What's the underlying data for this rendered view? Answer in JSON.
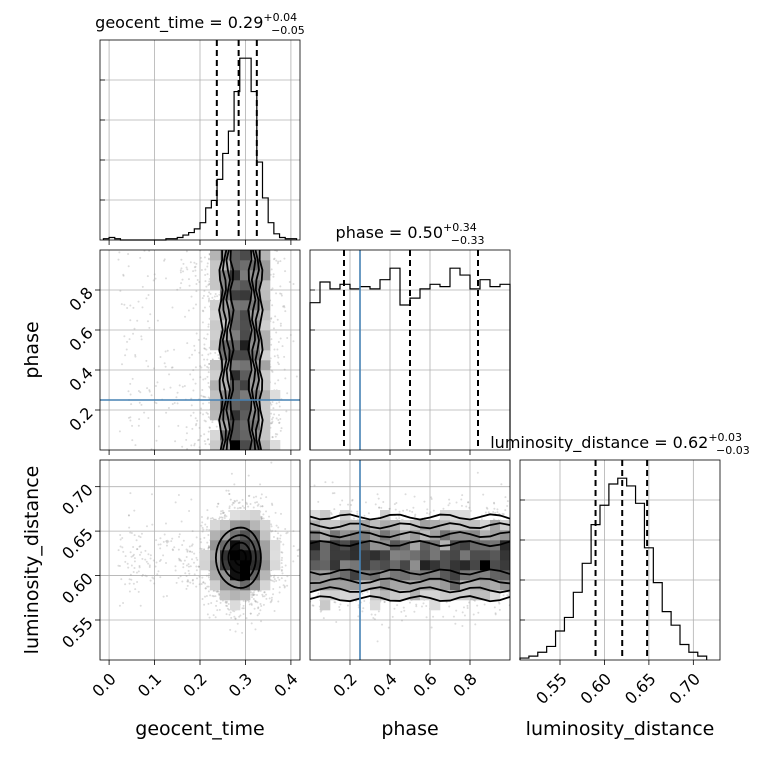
{
  "chart_data": {
    "type": "corner",
    "parameters": [
      {
        "name": "geocent_time",
        "axis_label": "geocent_time",
        "title": "geocent_time = 0.29",
        "title_plus": "+0.04",
        "title_minus": "−0.05",
        "range": [
          -0.02,
          0.42
        ],
        "ticks": [
          0.0,
          0.1,
          0.2,
          0.3,
          0.4
        ],
        "tick_labels": [
          "0.0",
          "0.1",
          "0.2",
          "0.3",
          "0.4"
        ],
        "quantiles": [
          0.237,
          0.285,
          0.325
        ],
        "hist_edges": [
          -0.0125,
          0.0,
          0.0125,
          0.025,
          0.0375,
          0.05,
          0.0625,
          0.075,
          0.0875,
          0.1,
          0.1125,
          0.125,
          0.1375,
          0.15,
          0.1625,
          0.175,
          0.1875,
          0.2,
          0.2125,
          0.225,
          0.2375,
          0.25,
          0.2625,
          0.275,
          0.2875,
          0.3,
          0.3125,
          0.325,
          0.3375,
          0.35,
          0.3625,
          0.375,
          0.3875,
          0.4,
          0.4125
        ],
        "hist_counts": [
          1,
          2,
          1,
          0,
          0,
          0,
          0,
          0,
          0,
          0,
          0,
          1,
          1,
          2,
          4,
          6,
          9,
          14,
          26,
          32,
          49,
          70,
          88,
          120,
          147,
          147,
          120,
          63,
          34,
          14,
          5,
          2,
          1,
          1
        ]
      },
      {
        "name": "phase",
        "axis_label": "phase",
        "title": "phase = 0.50",
        "title_plus": "+0.34",
        "title_minus": "−0.33",
        "range": [
          0.0,
          1.0
        ],
        "ticks": [
          0.2,
          0.4,
          0.6,
          0.8
        ],
        "tick_labels": [
          "0.2",
          "0.4",
          "0.6",
          "0.8"
        ],
        "quantiles": [
          0.17,
          0.5,
          0.84
        ],
        "truth": 0.25,
        "hist_edges": [
          0.0,
          0.05,
          0.1,
          0.15,
          0.2,
          0.25,
          0.3,
          0.35,
          0.4,
          0.45,
          0.5,
          0.55,
          0.6,
          0.65,
          0.7,
          0.75,
          0.8,
          0.85,
          0.9,
          0.95,
          1.0
        ],
        "hist_counts": [
          64,
          73,
          70,
          72,
          70,
          71,
          70,
          74,
          79,
          63,
          66,
          70,
          72,
          71,
          79,
          76,
          70,
          74,
          71,
          72
        ]
      },
      {
        "name": "luminosity_distance",
        "axis_label": "luminosity_distance",
        "title": "luminosity_distance = 0.62",
        "title_plus": "+0.03",
        "title_minus": "−0.03",
        "range": [
          0.505,
          0.73
        ],
        "ticks": [
          0.55,
          0.6,
          0.65,
          0.7
        ],
        "tick_labels": [
          "0.55",
          "0.60",
          "0.65",
          "0.70"
        ],
        "quantiles": [
          0.59,
          0.62,
          0.648
        ],
        "hist_edges": [
          0.505,
          0.515,
          0.525,
          0.535,
          0.545,
          0.555,
          0.565,
          0.575,
          0.585,
          0.595,
          0.605,
          0.615,
          0.625,
          0.635,
          0.645,
          0.655,
          0.665,
          0.675,
          0.685,
          0.695,
          0.705,
          0.715
        ],
        "hist_counts": [
          1,
          2,
          4,
          7,
          15,
          22,
          35,
          50,
          70,
          80,
          91,
          94,
          90,
          81,
          58,
          40,
          25,
          18,
          8,
          4,
          2
        ]
      }
    ],
    "grid": true
  }
}
